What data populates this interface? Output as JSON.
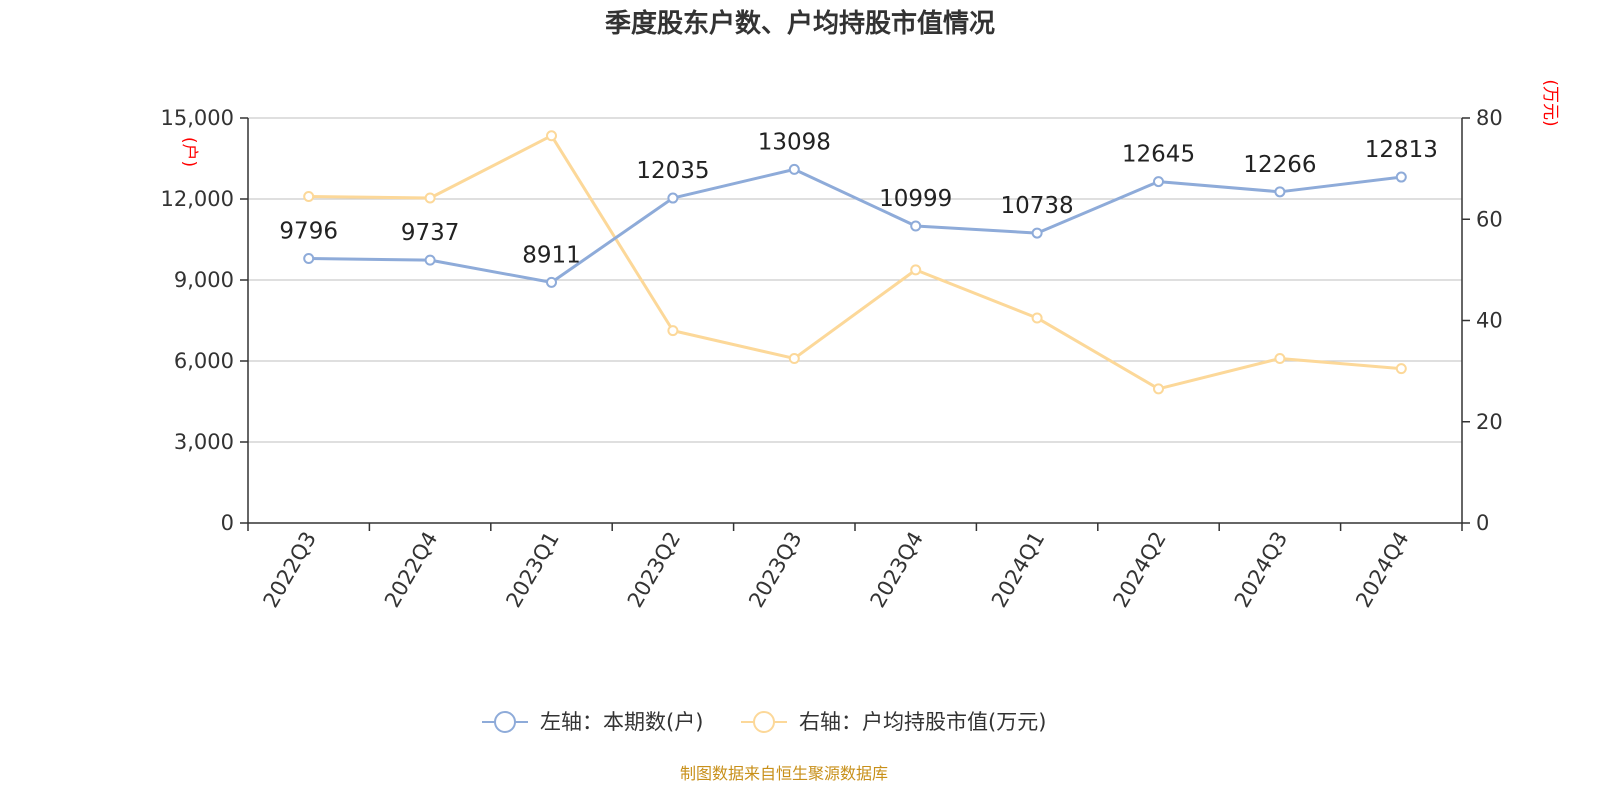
{
  "chart_data": {
    "type": "line",
    "title": "季度股东户数、户均持股市值情况",
    "categories": [
      "2022Q3",
      "2022Q4",
      "2023Q1",
      "2023Q2",
      "2023Q3",
      "2023Q4",
      "2024Q1",
      "2024Q2",
      "2024Q3",
      "2024Q4"
    ],
    "y_left": {
      "unit": "(户)",
      "range": [
        0,
        15000
      ],
      "ticks": [
        0,
        3000,
        6000,
        9000,
        12000,
        15000
      ],
      "tick_labels": [
        "0",
        "3,000",
        "6,000",
        "9,000",
        "12,000",
        "15,000"
      ]
    },
    "y_right": {
      "unit": "(万元)",
      "range": [
        0,
        80
      ],
      "ticks": [
        0,
        20,
        40,
        60,
        80
      ],
      "tick_labels": [
        "0",
        "20",
        "40",
        "60",
        "80"
      ]
    },
    "grid": true,
    "legend_position": "bottom-center",
    "series": [
      {
        "name": "左轴：本期数(户)",
        "axis": "left",
        "color": "#8eabd9",
        "values": [
          9796,
          9737,
          8911,
          12035,
          13098,
          10999,
          10738,
          12645,
          12266,
          12813
        ],
        "data_labels": [
          "9796",
          "9737",
          "8911",
          "12035",
          "13098",
          "10999",
          "10738",
          "12645",
          "12266",
          "12813"
        ]
      },
      {
        "name": "右轴：户均持股市值(万元)",
        "axis": "right",
        "color": "#fcd899",
        "values": [
          64.5,
          64.2,
          76.5,
          38.0,
          32.5,
          50.0,
          40.5,
          26.5,
          32.5,
          30.5
        ]
      }
    ]
  },
  "source": "制图数据来自恒生聚源数据库"
}
